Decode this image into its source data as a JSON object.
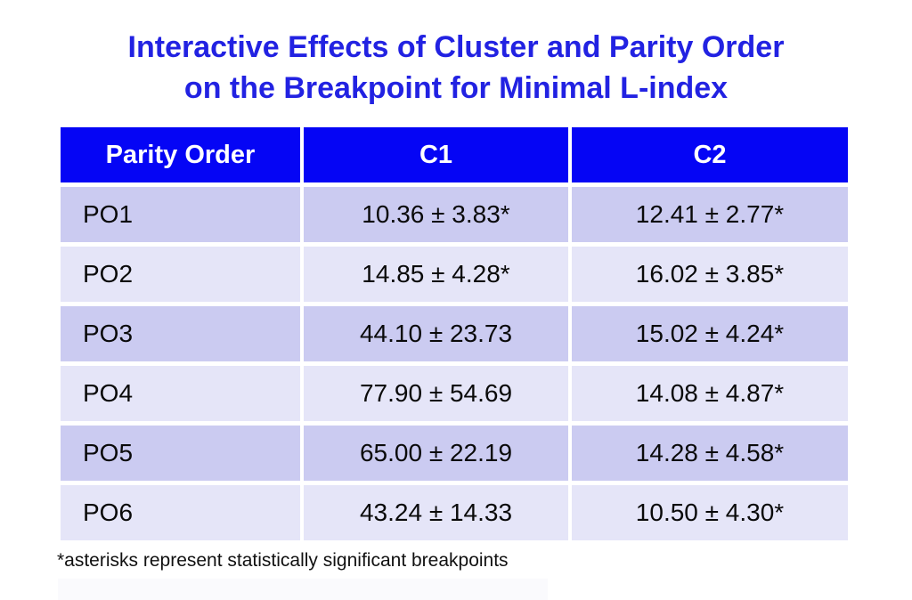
{
  "title": {
    "line1": "Interactive Effects of Cluster and Parity Order",
    "line2": "on the Breakpoint for Minimal L-index"
  },
  "table": {
    "headers": [
      "Parity Order",
      "C1",
      "C2"
    ],
    "rows": [
      [
        "PO1",
        "10.36 ± 3.83*",
        "12.41 ± 2.77*"
      ],
      [
        "PO2",
        "14.85 ± 4.28*",
        "16.02 ± 3.85*"
      ],
      [
        "PO3",
        "44.10 ± 23.73",
        "15.02 ± 4.24*"
      ],
      [
        "PO4",
        "77.90 ± 54.69",
        "14.08 ± 4.87*"
      ],
      [
        "PO5",
        "65.00 ± 22.19",
        "14.28 ± 4.58*"
      ],
      [
        "PO6",
        "43.24 ± 14.33",
        "10.50 ± 4.30*"
      ]
    ]
  },
  "footnote": "*asterisks represent statistically significant breakpoints",
  "colors": {
    "title_text": "#2222E2",
    "header_bg": "#0505F5",
    "header_text": "#FFFFFF",
    "row_dark": "#CBCBF1",
    "row_light": "#E5E5F8",
    "cell_text": "#0A0A0A",
    "ghost_band": "#FAFAFD"
  },
  "chart_data": {
    "type": "table",
    "title": "Interactive Effects of Cluster and Parity Order on the Breakpoint for Minimal L-index",
    "columns": [
      "Parity Order",
      "C1",
      "C2"
    ],
    "rows": [
      [
        "PO1",
        "10.36 ± 3.83*",
        "12.41 ± 2.77*"
      ],
      [
        "PO2",
        "14.85 ± 4.28*",
        "16.02 ± 3.85*"
      ],
      [
        "PO3",
        "44.10 ± 23.73",
        "15.02 ± 4.24*"
      ],
      [
        "PO4",
        "77.90 ± 54.69",
        "14.08 ± 4.87*"
      ],
      [
        "PO5",
        "65.00 ± 22.19",
        "14.28 ± 4.58*"
      ],
      [
        "PO6",
        "43.24 ± 14.33",
        "10.50 ± 4.30*"
      ]
    ],
    "categories": [
      "PO1",
      "PO2",
      "PO3",
      "PO4",
      "PO5",
      "PO6"
    ],
    "series": [
      {
        "name": "C1",
        "mean": [
          10.36,
          14.85,
          44.1,
          77.9,
          65.0,
          43.24
        ],
        "sd": [
          3.83,
          4.28,
          23.73,
          54.69,
          22.19,
          14.33
        ],
        "significant": [
          true,
          true,
          false,
          false,
          false,
          false
        ]
      },
      {
        "name": "C2",
        "mean": [
          12.41,
          16.02,
          15.02,
          14.08,
          14.28,
          10.5
        ],
        "sd": [
          2.77,
          3.85,
          4.24,
          4.87,
          4.58,
          4.3
        ],
        "significant": [
          true,
          true,
          true,
          true,
          true,
          true
        ]
      }
    ],
    "footnote": "*asterisks represent statistically significant breakpoints"
  }
}
